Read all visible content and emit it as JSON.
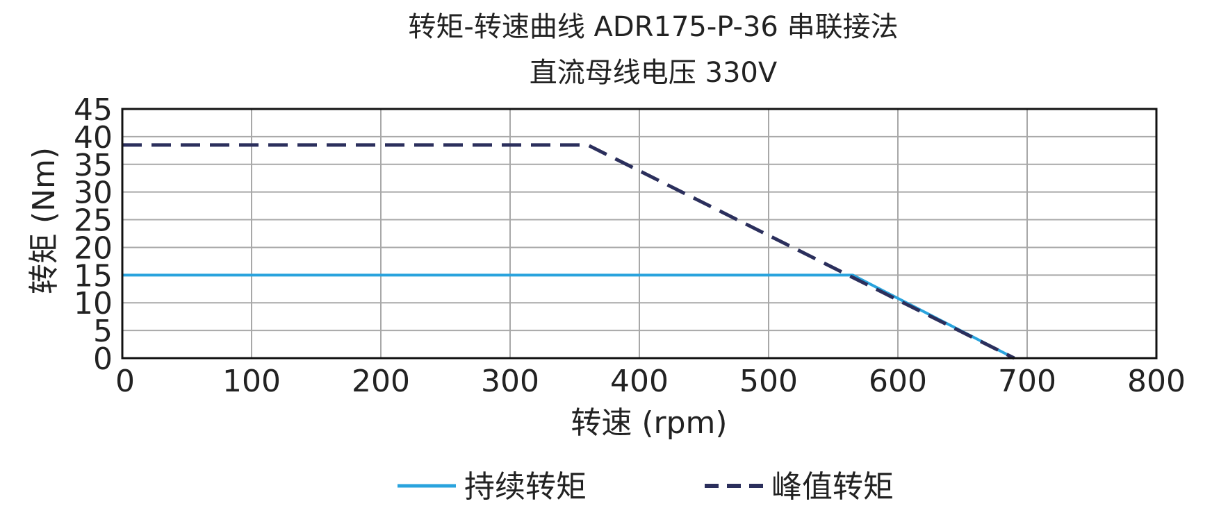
{
  "chart_data": {
    "type": "line",
    "title": "转矩-转速曲线 ADR175-P-36 串联接法",
    "subtitle": "直流母线电压 330V",
    "xlabel": "转速 (rpm)",
    "ylabel": "转矩 (Nm)",
    "xlim": [
      0,
      800
    ],
    "ylim": [
      0,
      45
    ],
    "x_ticks": [
      "0",
      "100",
      "200",
      "300",
      "400",
      "500",
      "600",
      "700",
      "800"
    ],
    "y_ticks": [
      "0",
      "5",
      "10",
      "15",
      "20",
      "25",
      "30",
      "35",
      "40",
      "45"
    ],
    "grid": true,
    "legend_position": "bottom",
    "series": [
      {
        "name": "持续转矩",
        "style": "solid",
        "color": "#29a3dd",
        "x": [
          0,
          565,
          690
        ],
        "y": [
          15,
          15,
          0
        ]
      },
      {
        "name": "峰值转矩",
        "style": "dashed",
        "color": "#2b2f5c",
        "x": [
          0,
          360,
          690
        ],
        "y": [
          38.5,
          38.5,
          0
        ]
      }
    ]
  }
}
